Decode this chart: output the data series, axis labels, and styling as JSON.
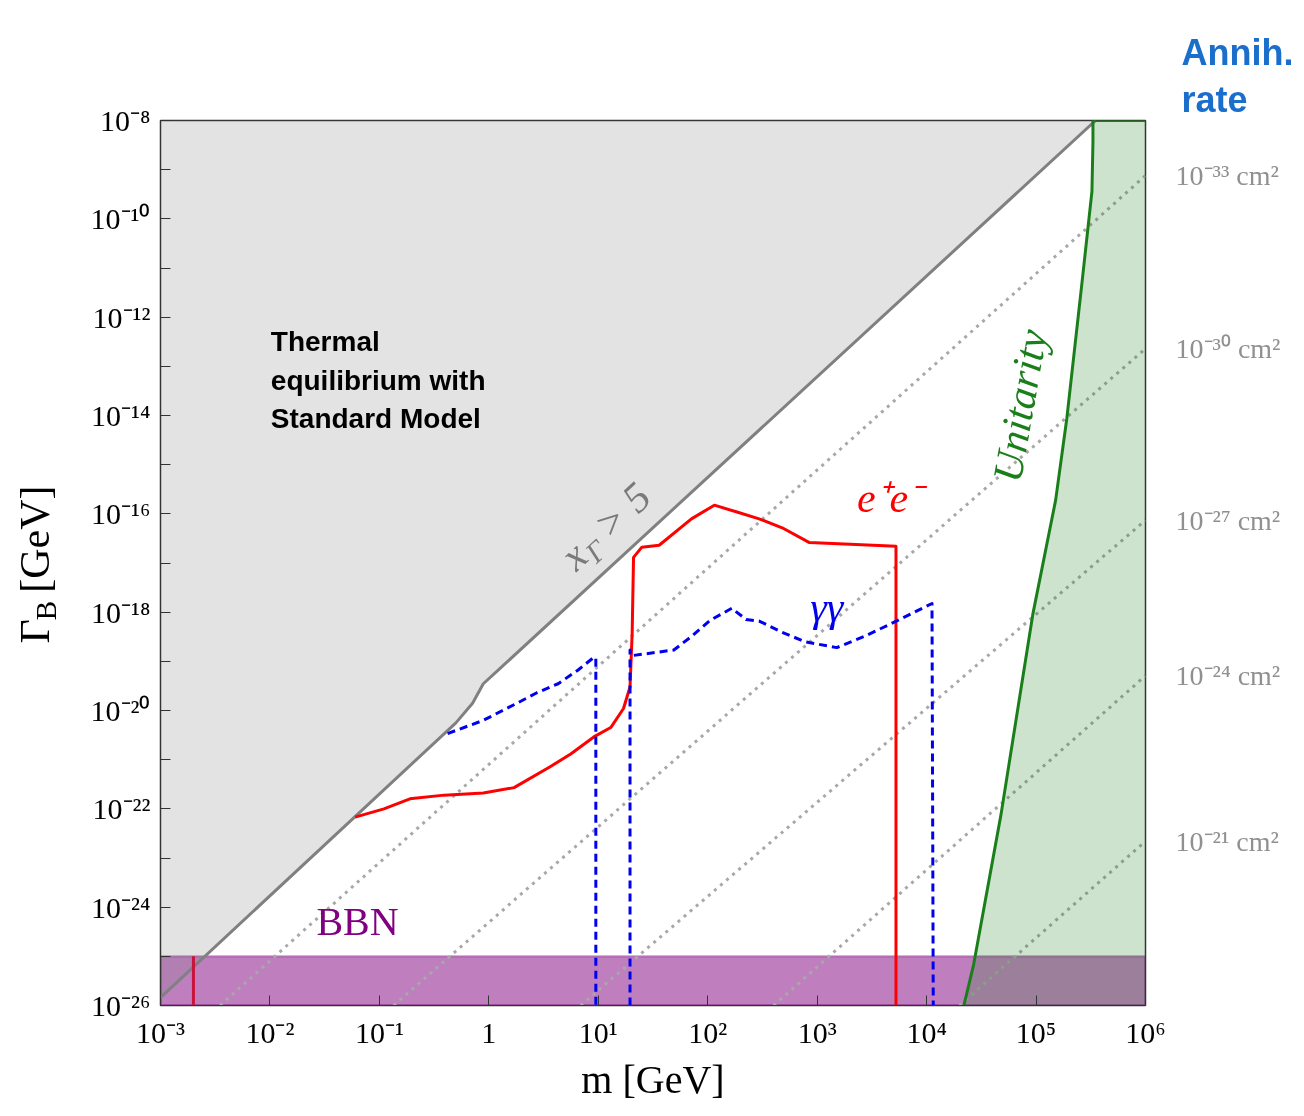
{
  "chart_data": {
    "type": "line",
    "xlabel": "m [GeV]",
    "ylabel": "Γ$_{B}$ [GeV]",
    "log": "xy",
    "xlim": [
      0.001,
      1000000
    ],
    "ylim": [
      1e-26,
      1e-08
    ],
    "xticks": [
      {
        "value": 0.001,
        "label": "10⁻³"
      },
      {
        "value": 0.01,
        "label": "10⁻²"
      },
      {
        "value": 0.1,
        "label": "10⁻¹"
      },
      {
        "value": 1,
        "label": "1"
      },
      {
        "value": 10,
        "label": "10¹"
      },
      {
        "value": 100,
        "label": "10²"
      },
      {
        "value": 1000,
        "label": "10³"
      },
      {
        "value": 10000,
        "label": "10⁴"
      },
      {
        "value": 100000,
        "label": "10⁵"
      },
      {
        "value": 1000000,
        "label": "10⁶"
      }
    ],
    "yticks": [
      {
        "value": 1e-26,
        "label": "10⁻²⁶"
      },
      {
        "value": 1e-25,
        "label": null
      },
      {
        "value": 1e-24,
        "label": "10⁻²⁴"
      },
      {
        "value": 1e-23,
        "label": null
      },
      {
        "value": 1e-22,
        "label": "10⁻²²"
      },
      {
        "value": 1e-21,
        "label": null
      },
      {
        "value": 1e-20,
        "label": "10⁻²⁰"
      },
      {
        "value": 1e-19,
        "label": null
      },
      {
        "value": 1e-18,
        "label": "10⁻¹⁸"
      },
      {
        "value": 1e-17,
        "label": null
      },
      {
        "value": 1e-16,
        "label": "10⁻¹⁶"
      },
      {
        "value": 1e-15,
        "label": null
      },
      {
        "value": 1e-14,
        "label": "10⁻¹⁴"
      },
      {
        "value": 1e-13,
        "label": null
      },
      {
        "value": 1e-12,
        "label": "10⁻¹²"
      },
      {
        "value": 1e-11,
        "label": null
      },
      {
        "value": 1e-10,
        "label": "10⁻¹⁰"
      },
      {
        "value": 1e-09,
        "label": null
      },
      {
        "value": 1e-08,
        "label": "10⁻⁸"
      }
    ],
    "series": [
      {
        "name": "x$_{Γ}$ > 5",
        "color": "#808080",
        "x": [
          0.001,
          0.5,
          0.71,
          0.89,
          1.26,
          350000
        ],
        "values": [
          1.45e-26,
          5.6e-21,
          1.4e-20,
          3.5e-20,
          7.1e-20,
          1e-08
        ],
        "lower": [
          1.45e-26,
          5.6e-21,
          1.4e-20,
          3.5e-20,
          7.1e-20,
          1e-08
        ],
        "upper": [
          1e-08,
          1e-08,
          1e-08,
          1e-08,
          1e-08,
          1e-08
        ]
      },
      {
        "color": "#a8a8a8",
        "line_style": "dotted",
        "x": [
          0.0035,
          1000000
        ],
        "values": [
          1e-26,
          7.6e-10
        ]
      },
      {
        "color": "#a8a8a8",
        "line_style": "dotted",
        "x": [
          0.135,
          1000000
        ],
        "values": [
          1e-26,
          2.3e-13
        ]
      },
      {
        "color": "#a8a8a8",
        "line_style": "dotted",
        "x": [
          6.9,
          1000000
        ],
        "values": [
          1e-26,
          7.4e-17
        ]
      },
      {
        "color": "#a8a8a8",
        "line_style": "dotted",
        "x": [
          400,
          1000000
        ],
        "values": [
          1e-26,
          5.1e-20
        ]
      },
      {
        "color": "#a8a8a8",
        "line_style": "dotted",
        "x": [
          20000,
          1000000
        ],
        "values": [
          1e-26,
          2.2e-23
        ]
      },
      {
        "color": "#c8143c",
        "x": [
          0.002,
          0.002
        ],
        "values": [
          1e-26,
          1e-25
        ]
      },
      {
        "name": "Unitarity",
        "color": "#1a7f1a",
        "x": [
          21900,
          26900,
          47900,
          93300,
          151000,
          191000,
          263000,
          324000,
          331000,
          331000,
          1000000
        ],
        "values": [
          1e-26,
          6.8e-26,
          7.8e-23,
          8.9e-19,
          1.9e-16,
          8.7e-15,
          5.1e-12,
          3.6e-10,
          3.7e-09,
          1e-08,
          1e-08
        ],
        "lower": [
          1e-26,
          1e-26,
          1e-26,
          1e-26,
          1e-26,
          1e-26,
          1e-26,
          1e-26,
          1e-26,
          1e-26,
          1e-26
        ],
        "upper": [
          1e-26,
          6.8e-26,
          7.8e-23,
          8.9e-19,
          1.9e-16,
          8.7e-15,
          5.1e-12,
          3.6e-10,
          3.7e-09,
          1e-08,
          1e-08
        ]
      },
      {
        "name": "e⁺e⁻",
        "color": "#ff0000",
        "x": [
          0.06,
          0.11,
          0.19,
          0.39,
          0.89,
          1.7,
          3.6,
          5.6,
          9.1,
          13,
          17,
          19.5,
          20.4,
          21,
          25,
          36,
          71,
          115,
          182,
          295,
          479,
          850,
          2000,
          5250,
          5250
        ],
        "values": [
          6.8e-23,
          1e-22,
          1.6e-22,
          1.9e-22,
          2.1e-22,
          2.7e-22,
          7.1e-22,
          1.3e-21,
          2.9e-21,
          4.5e-21,
          1.1e-20,
          3e-20,
          3.7e-19,
          1.3e-17,
          2.1e-17,
          2.3e-17,
          7.9e-17,
          1.5e-16,
          1.1e-16,
          7.9e-17,
          5.2e-17,
          2.6e-17,
          2.4e-17,
          2.2e-17,
          1e-26
        ]
      },
      {
        "name": "γγ",
        "color": "#0000ee",
        "line_style": "dashed",
        "x": [
          0.42,
          0.89,
          1.8,
          2.75,
          4.3,
          6.5,
          9.1,
          9.5,
          9.5,
          15,
          19.5,
          19.5,
          20,
          49,
          71,
          105,
          166,
          224,
          295,
          479,
          776,
          1510,
          2690,
          4790,
          11200,
          11500
        ],
        "values": [
          3.4e-21,
          6.3e-21,
          1.4e-20,
          2.3e-20,
          3.5e-20,
          6.6e-20,
          1.2e-19,
          1.2e-19,
          1e-26,
          null,
          1e-26,
          1.7e-19,
          1.3e-19,
          1.7e-19,
          3.2e-19,
          6.8e-19,
          1.2e-18,
          7.1e-19,
          6.6e-19,
          3.9e-19,
          2.5e-19,
          1.9e-19,
          3.2e-19,
          5.9e-19,
          1.5e-18,
          1e-26
        ]
      }
    ],
    "bands": [
      {
        "axis": "y",
        "from": 1e-26,
        "to": 1e-25,
        "label": "BBN",
        "color": "#800080"
      }
    ],
    "annotations": [
      "Thermal equilibrium with Standard Model",
      "Annih. rate",
      "10⁻³³ cm²",
      "10⁻³⁰ cm²",
      "10⁻²⁷ cm²",
      "10⁻²⁴ cm²",
      "10⁻²¹ cm²"
    ]
  }
}
